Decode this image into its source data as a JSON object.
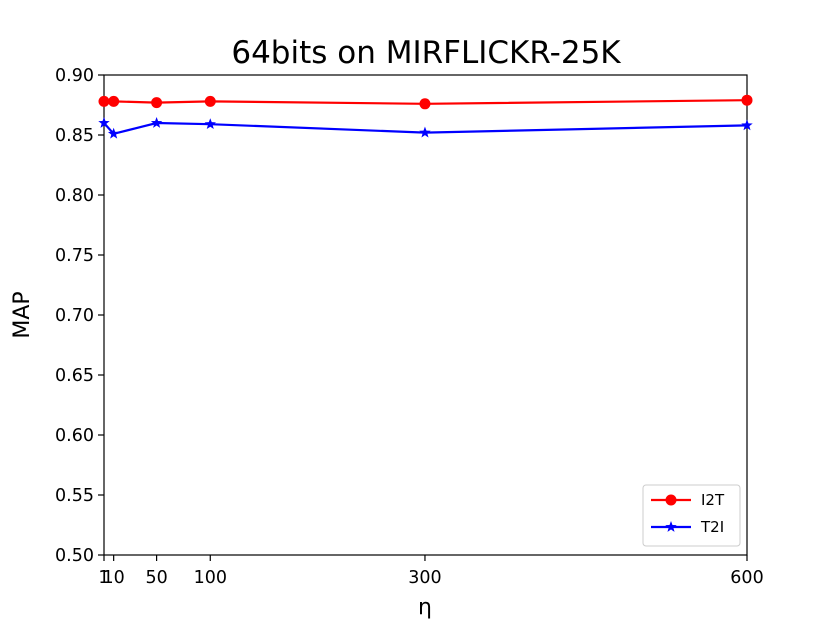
{
  "chart_data": {
    "type": "line",
    "title": "64bits on MIRFLICKR-25K",
    "xlabel": "η",
    "ylabel": "MAP",
    "x": [
      1,
      10,
      50,
      100,
      300,
      600
    ],
    "xticks": [
      1,
      10,
      50,
      100,
      300,
      600
    ],
    "xlim": [
      1,
      600
    ],
    "ylim": [
      0.5,
      0.9
    ],
    "yticks": [
      "0.50",
      "0.55",
      "0.60",
      "0.65",
      "0.70",
      "0.75",
      "0.80",
      "0.85",
      "0.90"
    ],
    "grid": false,
    "legend_position": "bottom-right",
    "series": [
      {
        "name": "I2T",
        "color": "#ff0000",
        "marker": "circle",
        "values": [
          0.878,
          0.878,
          0.877,
          0.878,
          0.876,
          0.879
        ]
      },
      {
        "name": "T2I",
        "color": "#0000ff",
        "marker": "star",
        "values": [
          0.86,
          0.851,
          0.86,
          0.859,
          0.852,
          0.858
        ]
      }
    ]
  }
}
